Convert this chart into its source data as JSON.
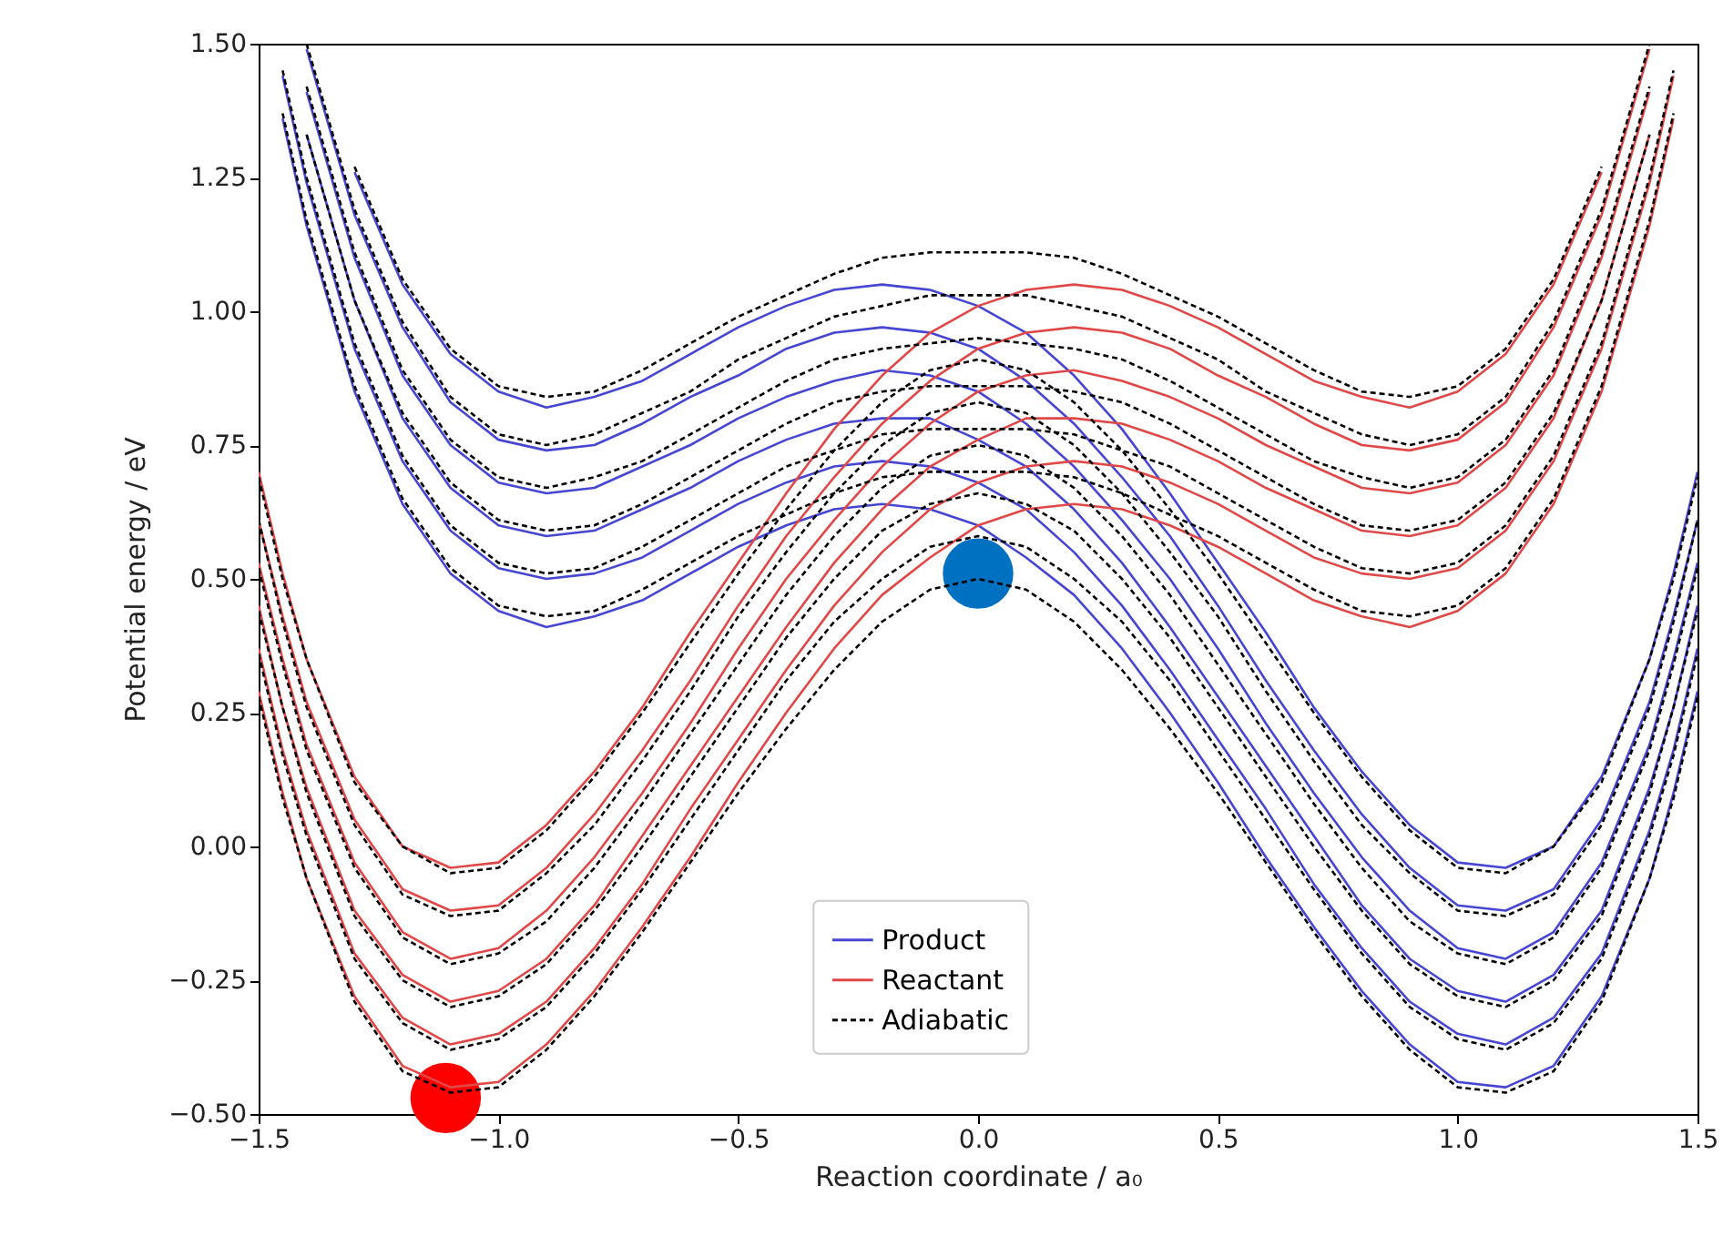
{
  "chart_data": {
    "type": "line",
    "xlabel": "Reaction coordinate / a₀",
    "ylabel": "Potential energy / eV",
    "x": [
      -1.5,
      -1.45,
      -1.4,
      -1.3,
      -1.2,
      -1.1,
      -1,
      -0.9,
      -0.8,
      -0.7,
      -0.6,
      -0.5,
      -0.4,
      -0.3,
      -0.2,
      -0.1,
      0,
      0.1,
      0.2,
      0.3,
      0.4,
      0.5,
      0.6,
      0.7,
      0.8,
      0.9,
      1,
      1.1,
      1.2,
      1.3,
      1.4,
      1.45,
      1.5
    ],
    "xlim": [
      -1.5,
      1.5
    ],
    "xticks": [
      {
        "value": -1.5,
        "label": "−1.5"
      },
      {
        "value": -1,
        "label": "−1.0"
      },
      {
        "value": -0.5,
        "label": "−0.5"
      },
      {
        "value": 0,
        "label": "0.0"
      },
      {
        "value": 0.5,
        "label": "0.5"
      },
      {
        "value": 1,
        "label": "1.0"
      },
      {
        "value": 1.5,
        "label": "1.5"
      }
    ],
    "ylim": [
      -0.5,
      1.5
    ],
    "yticks": [
      {
        "value": -0.5,
        "label": "−0.50"
      },
      {
        "value": -0.25,
        "label": "−0.25"
      },
      {
        "value": 0,
        "label": "0.00"
      },
      {
        "value": 0.25,
        "label": "0.25"
      },
      {
        "value": 0.5,
        "label": "0.50"
      },
      {
        "value": 0.75,
        "label": "0.75"
      },
      {
        "value": 1,
        "label": "1.00"
      },
      {
        "value": 1.25,
        "label": "1.25"
      },
      {
        "value": 1.5,
        "label": "1.50"
      }
    ],
    "grid": false,
    "legend": "bottom",
    "series": [
      {
        "name": "Product",
        "color": "#4646d2",
        "line_style": "solid",
        "values": [
          null,
          1.36,
          1.16,
          0.85,
          0.64,
          0.51,
          0.44,
          0.41,
          0.43,
          0.46,
          0.51,
          0.56,
          0.6,
          0.63,
          0.64,
          0.63,
          0.6,
          0.54,
          0.47,
          0.37,
          0.25,
          0.12,
          -0.02,
          -0.15,
          -0.27,
          -0.37,
          -0.44,
          -0.45,
          -0.41,
          -0.28,
          -0.06,
          0.1,
          0.29
        ]
      },
      {
        "color": "#4646d2",
        "line_style": "solid",
        "values": [
          null,
          1.44,
          1.24,
          0.93,
          0.72,
          0.59,
          0.52,
          0.5,
          0.51,
          0.54,
          0.59,
          0.64,
          0.68,
          0.71,
          0.72,
          0.71,
          0.68,
          0.63,
          0.55,
          0.45,
          0.33,
          0.2,
          0.07,
          -0.07,
          -0.19,
          -0.29,
          -0.35,
          -0.37,
          -0.32,
          -0.2,
          0.03,
          0.18,
          0.37
        ]
      },
      {
        "color": "#4646d2",
        "line_style": "solid",
        "values": [
          null,
          null,
          1.33,
          1.02,
          0.8,
          0.67,
          0.6,
          0.58,
          0.59,
          0.63,
          0.67,
          0.72,
          0.76,
          0.79,
          0.8,
          0.8,
          0.76,
          0.71,
          0.63,
          0.53,
          0.41,
          0.28,
          0.15,
          0.02,
          -0.11,
          -0.21,
          -0.27,
          -0.29,
          -0.24,
          -0.12,
          0.11,
          0.26,
          0.45
        ]
      },
      {
        "color": "#4646d2",
        "line_style": "solid",
        "values": [
          null,
          null,
          1.41,
          1.1,
          0.88,
          0.75,
          0.68,
          0.66,
          0.67,
          0.71,
          0.75,
          0.8,
          0.84,
          0.87,
          0.89,
          0.88,
          0.85,
          0.79,
          0.71,
          0.61,
          0.5,
          0.37,
          0.23,
          0.1,
          -0.02,
          -0.12,
          -0.19,
          -0.21,
          -0.16,
          -0.03,
          0.19,
          0.35,
          0.53
        ]
      },
      {
        "color": "#4646d2",
        "line_style": "solid",
        "values": [
          null,
          null,
          1.49,
          1.18,
          0.97,
          0.83,
          0.76,
          0.74,
          0.75,
          0.79,
          0.84,
          0.88,
          0.93,
          0.96,
          0.97,
          0.96,
          0.93,
          0.87,
          0.79,
          0.69,
          0.58,
          0.45,
          0.31,
          0.18,
          0.06,
          -0.04,
          -0.11,
          -0.12,
          -0.08,
          0.05,
          0.27,
          0.43,
          0.61
        ]
      },
      {
        "color": "#4646d2",
        "line_style": "solid",
        "values": [
          null,
          null,
          null,
          1.26,
          1.05,
          0.92,
          0.85,
          0.82,
          0.84,
          0.87,
          0.92,
          0.97,
          1.01,
          1.04,
          1.05,
          1.04,
          1.01,
          0.96,
          0.88,
          0.78,
          0.66,
          0.53,
          0.4,
          0.26,
          0.14,
          0.04,
          -0.03,
          -0.04,
          0,
          0.13,
          0.35,
          0.51,
          0.7
        ]
      },
      {
        "name": "Reactant",
        "color": "#e04848",
        "line_style": "solid",
        "values": [
          0.29,
          0.1,
          -0.06,
          -0.28,
          -0.41,
          -0.45,
          -0.44,
          -0.37,
          -0.27,
          -0.15,
          -0.02,
          0.12,
          0.25,
          0.37,
          0.47,
          0.54,
          0.6,
          0.63,
          0.64,
          0.63,
          0.6,
          0.56,
          0.51,
          0.46,
          0.43,
          0.41,
          0.44,
          0.51,
          0.64,
          0.85,
          1.16,
          1.36,
          null
        ]
      },
      {
        "color": "#e04848",
        "line_style": "solid",
        "values": [
          0.37,
          0.18,
          0.03,
          -0.2,
          -0.32,
          -0.37,
          -0.35,
          -0.29,
          -0.19,
          -0.07,
          0.07,
          0.2,
          0.33,
          0.45,
          0.55,
          0.63,
          0.68,
          0.71,
          0.72,
          0.71,
          0.68,
          0.64,
          0.59,
          0.54,
          0.51,
          0.5,
          0.52,
          0.59,
          0.72,
          0.93,
          1.24,
          1.44,
          null
        ]
      },
      {
        "color": "#e04848",
        "line_style": "solid",
        "values": [
          0.45,
          0.26,
          0.11,
          -0.12,
          -0.24,
          -0.29,
          -0.27,
          -0.21,
          -0.11,
          0.02,
          0.15,
          0.28,
          0.41,
          0.53,
          0.63,
          0.71,
          0.76,
          0.8,
          0.8,
          0.79,
          0.76,
          0.72,
          0.67,
          0.63,
          0.59,
          0.58,
          0.6,
          0.67,
          0.8,
          1.02,
          1.33,
          null,
          null
        ]
      },
      {
        "color": "#e04848",
        "line_style": "solid",
        "values": [
          0.53,
          0.35,
          0.19,
          -0.03,
          -0.16,
          -0.21,
          -0.19,
          -0.12,
          -0.02,
          0.1,
          0.23,
          0.37,
          0.5,
          0.61,
          0.71,
          0.79,
          0.85,
          0.88,
          0.89,
          0.87,
          0.84,
          0.8,
          0.75,
          0.71,
          0.67,
          0.66,
          0.68,
          0.75,
          0.88,
          1.1,
          1.41,
          null,
          null
        ]
      },
      {
        "color": "#e04848",
        "line_style": "solid",
        "values": [
          0.61,
          0.43,
          0.27,
          0.05,
          -0.08,
          -0.12,
          -0.11,
          -0.04,
          0.06,
          0.18,
          0.31,
          0.45,
          0.58,
          0.69,
          0.79,
          0.87,
          0.93,
          0.96,
          0.97,
          0.96,
          0.93,
          0.88,
          0.84,
          0.79,
          0.75,
          0.74,
          0.76,
          0.83,
          0.97,
          1.18,
          1.49,
          null,
          null
        ]
      },
      {
        "color": "#e04848",
        "line_style": "solid",
        "values": [
          0.7,
          0.51,
          0.35,
          0.13,
          0,
          -0.04,
          -0.03,
          0.04,
          0.14,
          0.26,
          0.4,
          0.53,
          0.66,
          0.78,
          0.88,
          0.96,
          1.01,
          1.04,
          1.05,
          1.04,
          1.01,
          0.97,
          0.92,
          0.87,
          0.84,
          0.82,
          0.85,
          0.92,
          1.05,
          1.26,
          null,
          null,
          null
        ]
      },
      {
        "name": "Adiabatic",
        "color": "#000000",
        "line_style": "dashed",
        "values": [
          0.28,
          0.09,
          -0.06,
          -0.29,
          -0.42,
          -0.46,
          -0.45,
          -0.38,
          -0.28,
          -0.16,
          -0.03,
          0.1,
          0.22,
          0.33,
          0.42,
          0.48,
          0.5,
          0.48,
          0.42,
          0.33,
          0.22,
          0.1,
          -0.03,
          -0.16,
          -0.28,
          -0.38,
          -0.45,
          -0.46,
          -0.42,
          -0.29,
          -0.06,
          0.09,
          0.28
        ]
      },
      {
        "color": "#000000",
        "line_style": "dashed",
        "values": [
          0.36,
          0.17,
          0.02,
          -0.21,
          -0.33,
          -0.38,
          -0.36,
          -0.3,
          -0.2,
          -0.08,
          0.05,
          0.18,
          0.31,
          0.42,
          0.5,
          0.56,
          0.58,
          0.56,
          0.5,
          0.42,
          0.31,
          0.18,
          0.05,
          -0.08,
          -0.2,
          -0.3,
          -0.36,
          -0.38,
          -0.33,
          -0.21,
          0.02,
          0.17,
          0.36
        ]
      },
      {
        "color": "#000000",
        "line_style": "dashed",
        "values": [
          0.44,
          0.26,
          0.1,
          -0.13,
          -0.25,
          -0.3,
          -0.28,
          -0.22,
          -0.12,
          0,
          0.13,
          0.26,
          0.39,
          0.5,
          0.59,
          0.64,
          0.66,
          0.64,
          0.59,
          0.5,
          0.39,
          0.26,
          0.13,
          0,
          -0.12,
          -0.22,
          -0.28,
          -0.3,
          -0.25,
          -0.13,
          0.1,
          0.26,
          0.44
        ]
      },
      {
        "color": "#000000",
        "line_style": "dashed",
        "values": [
          0.52,
          0.34,
          0.18,
          -0.04,
          -0.17,
          -0.22,
          -0.2,
          -0.14,
          -0.04,
          0.08,
          0.21,
          0.34,
          0.47,
          0.58,
          0.67,
          0.73,
          0.75,
          0.73,
          0.67,
          0.58,
          0.47,
          0.34,
          0.21,
          0.08,
          -0.04,
          -0.14,
          -0.2,
          -0.22,
          -0.17,
          -0.04,
          0.18,
          0.34,
          0.52
        ]
      },
      {
        "color": "#000000",
        "line_style": "dashed",
        "values": [
          0.61,
          0.42,
          0.26,
          0.04,
          -0.09,
          -0.13,
          -0.12,
          -0.05,
          0.04,
          0.16,
          0.29,
          0.43,
          0.55,
          0.66,
          0.75,
          0.81,
          0.83,
          0.81,
          0.75,
          0.66,
          0.55,
          0.43,
          0.29,
          0.16,
          0.04,
          -0.05,
          -0.12,
          -0.13,
          -0.09,
          0.04,
          0.26,
          0.42,
          0.61
        ]
      },
      {
        "color": "#000000",
        "line_style": "dashed",
        "values": [
          0.69,
          0.5,
          0.35,
          0.12,
          0,
          -0.05,
          -0.04,
          0.03,
          0.13,
          0.25,
          0.38,
          0.51,
          0.63,
          0.74,
          0.83,
          0.89,
          0.91,
          0.89,
          0.83,
          0.74,
          0.63,
          0.51,
          0.38,
          0.25,
          0.13,
          0.03,
          -0.04,
          -0.05,
          0,
          0.12,
          0.35,
          0.5,
          0.69
        ]
      },
      {
        "color": "#000000",
        "line_style": "dashed",
        "values": [
          null,
          1.37,
          1.17,
          0.86,
          0.65,
          0.52,
          0.45,
          0.43,
          0.44,
          0.48,
          0.53,
          0.58,
          0.62,
          0.66,
          0.69,
          0.7,
          0.7,
          0.7,
          0.69,
          0.66,
          0.62,
          0.58,
          0.53,
          0.48,
          0.44,
          0.43,
          0.45,
          0.52,
          0.65,
          0.86,
          1.17,
          1.37,
          null
        ]
      },
      {
        "color": "#000000",
        "line_style": "dashed",
        "values": [
          null,
          1.45,
          1.25,
          0.94,
          0.73,
          0.6,
          0.53,
          0.51,
          0.52,
          0.56,
          0.61,
          0.66,
          0.71,
          0.74,
          0.77,
          0.78,
          0.78,
          0.78,
          0.77,
          0.74,
          0.71,
          0.66,
          0.61,
          0.56,
          0.52,
          0.51,
          0.53,
          0.6,
          0.73,
          0.94,
          1.25,
          1.45,
          null
        ]
      },
      {
        "color": "#000000",
        "line_style": "dashed",
        "values": [
          null,
          null,
          1.33,
          1.02,
          0.81,
          0.68,
          0.61,
          0.59,
          0.6,
          0.64,
          0.69,
          0.74,
          0.79,
          0.83,
          0.85,
          0.86,
          0.86,
          0.86,
          0.85,
          0.83,
          0.79,
          0.74,
          0.69,
          0.64,
          0.6,
          0.59,
          0.61,
          0.68,
          0.81,
          1.02,
          1.33,
          null,
          null
        ]
      },
      {
        "color": "#000000",
        "line_style": "dashed",
        "values": [
          null,
          null,
          1.42,
          1.11,
          0.89,
          0.76,
          0.69,
          0.67,
          0.69,
          0.72,
          0.77,
          0.82,
          0.87,
          0.91,
          0.93,
          0.94,
          0.95,
          0.94,
          0.93,
          0.91,
          0.87,
          0.82,
          0.77,
          0.72,
          0.69,
          0.67,
          0.69,
          0.76,
          0.89,
          1.11,
          1.42,
          null,
          null
        ]
      },
      {
        "color": "#000000",
        "line_style": "dashed",
        "values": [
          null,
          null,
          1.5,
          1.19,
          0.98,
          0.84,
          0.77,
          0.75,
          0.77,
          0.81,
          0.85,
          0.91,
          0.95,
          0.99,
          1.01,
          1.03,
          1.03,
          1.03,
          1.01,
          0.99,
          0.95,
          0.91,
          0.85,
          0.81,
          0.77,
          0.75,
          0.77,
          0.84,
          0.98,
          1.19,
          1.5,
          null,
          null
        ]
      },
      {
        "color": "#000000",
        "line_style": "dashed",
        "values": [
          null,
          null,
          null,
          1.27,
          1.06,
          0.93,
          0.86,
          0.84,
          0.85,
          0.89,
          0.94,
          0.99,
          1.03,
          1.07,
          1.1,
          1.11,
          1.11,
          1.11,
          1.1,
          1.07,
          1.03,
          0.99,
          0.94,
          0.89,
          0.85,
          0.84,
          0.86,
          0.93,
          1.06,
          1.27,
          null,
          null,
          null
        ]
      },
      {
        "type": "scatter",
        "color": "#ff0000",
        "marker": "circle",
        "x": [
          -1.11
        ],
        "values": [
          -0.47
        ]
      },
      {
        "type": "scatter",
        "color": "#0070c0",
        "marker": "circle",
        "x": [
          0
        ],
        "values": [
          0.51
        ]
      }
    ]
  }
}
